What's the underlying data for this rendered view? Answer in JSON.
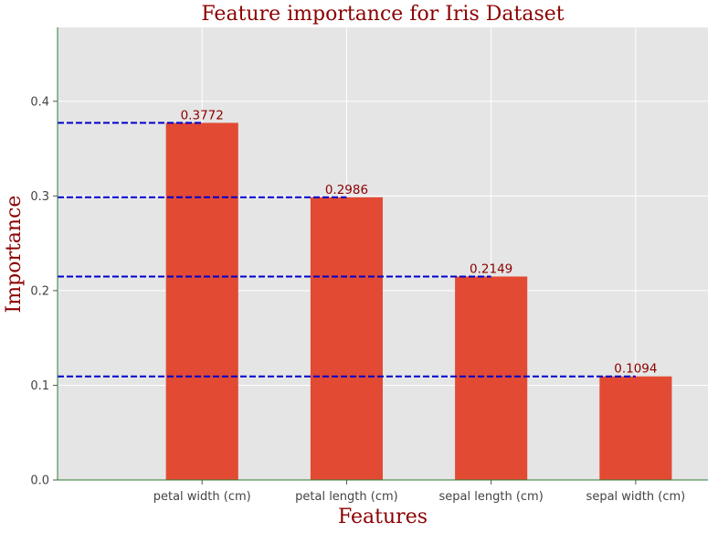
{
  "chart_data": {
    "type": "bar",
    "title": "Feature importance for Iris Dataset",
    "xlabel": "Features",
    "ylabel": "Importance",
    "categories": [
      "petal width (cm)",
      "petal length (cm)",
      "sepal length (cm)",
      "sepal width (cm)"
    ],
    "values": [
      0.3772,
      0.2986,
      0.2149,
      0.1094
    ],
    "value_labels": [
      "0.3772",
      "0.2986",
      "0.2149",
      "0.1094"
    ],
    "ylim": [
      0,
      0.478
    ],
    "yticks": [
      0.0,
      0.1,
      0.2,
      0.3,
      0.4
    ],
    "ytick_labels": [
      "0.0",
      "0.1",
      "0.2",
      "0.3",
      "0.4"
    ],
    "xlim": [
      -1,
      3.5
    ],
    "grid": true,
    "reference_lines": "dashed horizontal line at each bar value",
    "colors": {
      "bar": "#e24a33",
      "reference_line": "#0000cd",
      "background": "#e5e5e5",
      "grid": "#ffffff",
      "spine": "#2e7d32",
      "title": "#8b0000",
      "value_label": "#8b0000"
    }
  }
}
